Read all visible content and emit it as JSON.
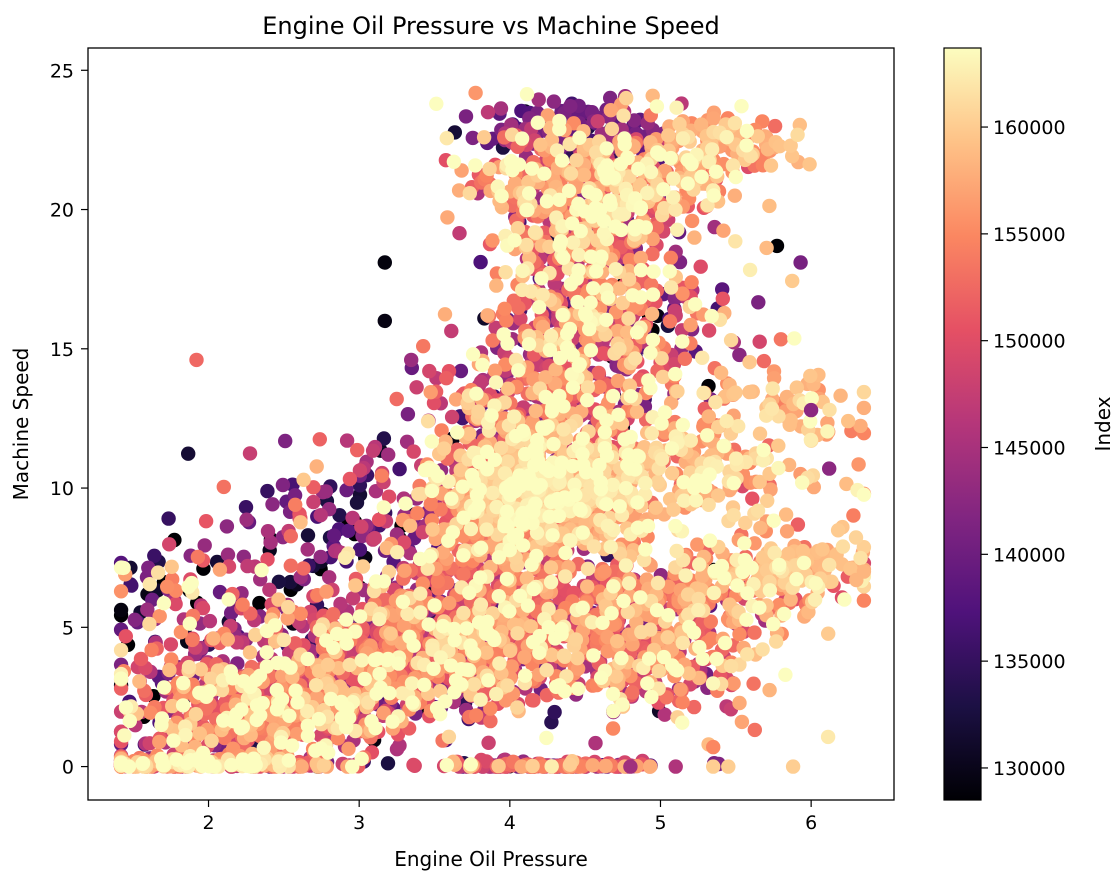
{
  "chart_data": {
    "type": "scatter",
    "title": "Engine Oil Pressure vs Machine Speed",
    "xlabel": "Engine Oil Pressure",
    "ylabel": "Machine Speed",
    "xlim": [
      1.2,
      6.55
    ],
    "ylim": [
      -1.2,
      25.8
    ],
    "xticks": [
      2,
      3,
      4,
      5,
      6
    ],
    "yticks": [
      0,
      5,
      10,
      15,
      20,
      25
    ],
    "grid": false,
    "colorbar": {
      "label": "Index",
      "colormap": "magma",
      "range": [
        128500,
        163700
      ],
      "ticks": [
        130000,
        135000,
        140000,
        145000,
        150000,
        155000,
        160000
      ]
    },
    "point_color": "mapped from index via magma colormap",
    "clusters": [
      {
        "x": 1.9,
        "y": 0.1,
        "sx": 0.38,
        "sy": 0.12,
        "n": 260,
        "c": 0.72,
        "cs": 0.2
      },
      {
        "x": 2.3,
        "y": 1.8,
        "sx": 0.45,
        "sy": 1.1,
        "n": 460,
        "c": 0.68,
        "cs": 0.25
      },
      {
        "x": 2.9,
        "y": 3.2,
        "sx": 0.5,
        "sy": 1.2,
        "n": 460,
        "c": 0.62,
        "cs": 0.25
      },
      {
        "x": 3.5,
        "y": 4.6,
        "sx": 0.42,
        "sy": 1.3,
        "n": 460,
        "c": 0.6,
        "cs": 0.25
      },
      {
        "x": 4.3,
        "y": 5.4,
        "sx": 0.45,
        "sy": 1.5,
        "n": 520,
        "c": 0.68,
        "cs": 0.22
      },
      {
        "x": 3.9,
        "y": 9.3,
        "sx": 0.28,
        "sy": 1.4,
        "n": 450,
        "c": 0.72,
        "cs": 0.22
      },
      {
        "x": 4.3,
        "y": 9.8,
        "sx": 0.32,
        "sy": 1.0,
        "n": 460,
        "c": 0.86,
        "cs": 0.1
      },
      {
        "x": 4.2,
        "y": 13.2,
        "sx": 0.34,
        "sy": 1.6,
        "n": 420,
        "c": 0.68,
        "cs": 0.25
      },
      {
        "x": 4.5,
        "y": 17.5,
        "sx": 0.3,
        "sy": 1.8,
        "n": 380,
        "c": 0.68,
        "cs": 0.25
      },
      {
        "x": 4.6,
        "y": 20.8,
        "sx": 0.4,
        "sy": 1.2,
        "n": 420,
        "c": 0.8,
        "cs": 0.18
      },
      {
        "x": 4.45,
        "y": 22.8,
        "sx": 0.28,
        "sy": 0.5,
        "n": 160,
        "c": 0.3,
        "cs": 0.1
      },
      {
        "x": 5.35,
        "y": 22.2,
        "sx": 0.3,
        "sy": 0.6,
        "n": 120,
        "c": 0.85,
        "cs": 0.08
      },
      {
        "x": 5.2,
        "y": 10.6,
        "sx": 0.45,
        "sy": 1.2,
        "n": 240,
        "c": 0.86,
        "cs": 0.1
      },
      {
        "x": 5.5,
        "y": 6.5,
        "sx": 0.45,
        "sy": 0.8,
        "n": 200,
        "c": 0.82,
        "cs": 0.12
      },
      {
        "x": 5.0,
        "y": 3.8,
        "sx": 0.35,
        "sy": 1.2,
        "n": 200,
        "c": 0.72,
        "cs": 0.2
      },
      {
        "x": 4.2,
        "y": 0.0,
        "sx": 0.35,
        "sy": 0.1,
        "n": 180,
        "c": 0.55,
        "cs": 0.2
      },
      {
        "x": 6.0,
        "y": 7.3,
        "sx": 0.22,
        "sy": 0.4,
        "n": 70,
        "c": 0.88,
        "cs": 0.05
      },
      {
        "x": 5.7,
        "y": 13.0,
        "sx": 0.3,
        "sy": 0.6,
        "n": 70,
        "c": 0.85,
        "cs": 0.08
      },
      {
        "x": 4.9,
        "y": 15.5,
        "sx": 0.35,
        "sy": 1.5,
        "n": 140,
        "c": 0.6,
        "cs": 0.3
      },
      {
        "x": 2.8,
        "y": 8.2,
        "sx": 0.45,
        "sy": 1.8,
        "n": 160,
        "c": 0.4,
        "cs": 0.25
      },
      {
        "x": 1.8,
        "y": 5.8,
        "sx": 0.25,
        "sy": 1.4,
        "n": 90,
        "c": 0.5,
        "cs": 0.3
      }
    ],
    "outliers": [
      {
        "x": 1.92,
        "y": 14.6,
        "c": 0.68
      },
      {
        "x": 3.17,
        "y": 18.1,
        "c": 0.02
      },
      {
        "x": 3.17,
        "y": 16.0,
        "c": 0.03
      },
      {
        "x": 5.35,
        "y": 0.7,
        "c": 0.75
      },
      {
        "x": 5.88,
        "y": 0.0,
        "c": 0.9
      },
      {
        "x": 5.93,
        "y": 18.1,
        "c": 0.35
      },
      {
        "x": 6.3,
        "y": 6.7,
        "c": 0.85
      },
      {
        "x": 6.35,
        "y": 7.0,
        "c": 0.85
      },
      {
        "x": 6.0,
        "y": 12.8,
        "c": 0.4
      },
      {
        "x": 6.12,
        "y": 10.7,
        "c": 0.4
      },
      {
        "x": 5.35,
        "y": 0.0,
        "c": 0.9
      },
      {
        "x": 5.45,
        "y": 0.0,
        "c": 0.9
      },
      {
        "x": 4.8,
        "y": 0.0,
        "c": 0.45
      }
    ]
  }
}
